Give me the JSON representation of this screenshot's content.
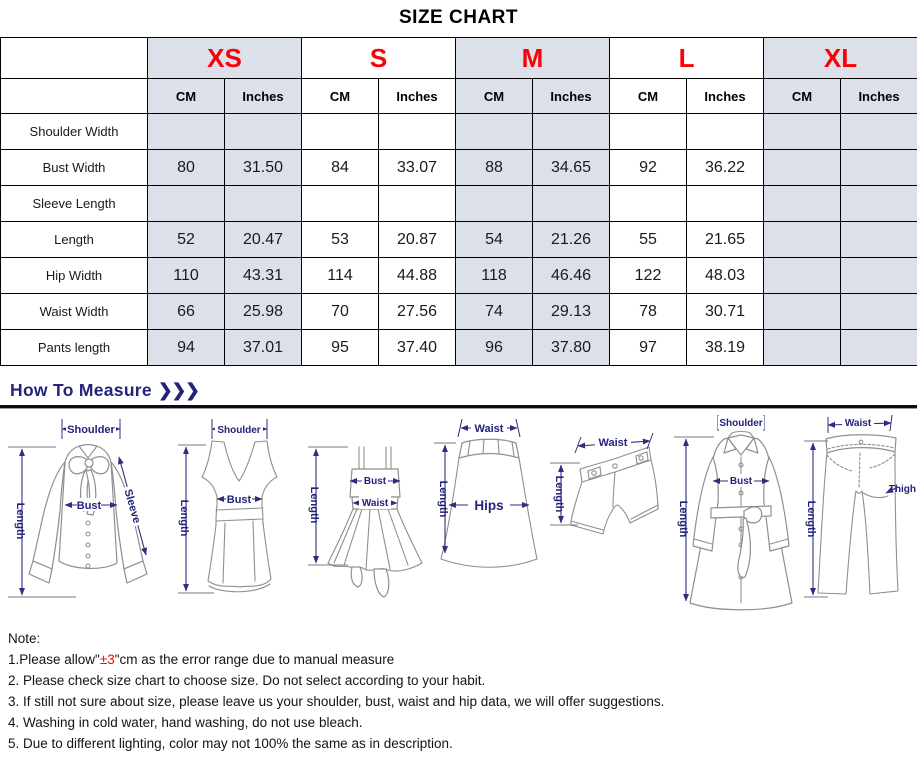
{
  "title": "SIZE CHART",
  "colors": {
    "accent_red": "#fb0007",
    "navy": "#23237b",
    "shaded_cell": "#dce0e8"
  },
  "table": {
    "sizes": [
      {
        "label": "XS",
        "shaded": true
      },
      {
        "label": "S",
        "shaded": false
      },
      {
        "label": "M",
        "shaded": true
      },
      {
        "label": "L",
        "shaded": false
      },
      {
        "label": "XL",
        "shaded": true
      }
    ],
    "unit_headers": [
      "CM",
      "Inches"
    ],
    "rows": [
      {
        "label": "Shoulder Width",
        "values": [
          "",
          "",
          "",
          "",
          "",
          "",
          "",
          "",
          "",
          ""
        ]
      },
      {
        "label": "Bust Width",
        "values": [
          "80",
          "31.50",
          "84",
          "33.07",
          "88",
          "34.65",
          "92",
          "36.22",
          "",
          ""
        ]
      },
      {
        "label": "Sleeve Length",
        "values": [
          "",
          "",
          "",
          "",
          "",
          "",
          "",
          "",
          "",
          ""
        ]
      },
      {
        "label": "Length",
        "values": [
          "52",
          "20.47",
          "53",
          "20.87",
          "54",
          "21.26",
          "55",
          "21.65",
          "",
          ""
        ]
      },
      {
        "label": "Hip Width",
        "values": [
          "110",
          "43.31",
          "114",
          "44.88",
          "118",
          "46.46",
          "122",
          "48.03",
          "",
          ""
        ]
      },
      {
        "label": "Waist Width",
        "values": [
          "66",
          "25.98",
          "70",
          "27.56",
          "74",
          "29.13",
          "78",
          "30.71",
          "",
          ""
        ]
      },
      {
        "label": "Pants length",
        "values": [
          "94",
          "37.01",
          "95",
          "37.40",
          "96",
          "37.80",
          "97",
          "38.19",
          "",
          ""
        ]
      }
    ]
  },
  "how_to_measure": {
    "heading": "How To Measure",
    "arrows": "❯❯❯"
  },
  "diagrams": [
    {
      "name": "blouse",
      "labels": {
        "shoulder": "Shoulder",
        "length": "Length",
        "bust": "Bust",
        "sleeve": "Sleeve"
      }
    },
    {
      "name": "tank-top",
      "labels": {
        "shoulder": "Shoulder",
        "length": "Length",
        "bust": "Bust"
      }
    },
    {
      "name": "dress",
      "labels": {
        "length": "Length",
        "bust": "Bust",
        "waist": "Waist"
      }
    },
    {
      "name": "skirt",
      "labels": {
        "waist": "Waist",
        "length": "Length",
        "hips": "Hips"
      }
    },
    {
      "name": "shorts",
      "labels": {
        "waist": "Waist",
        "length": "Length"
      }
    },
    {
      "name": "coat",
      "labels": {
        "shoulder": "Shoulder",
        "length": "Length",
        "bust": "Bust"
      }
    },
    {
      "name": "pants",
      "labels": {
        "waist": "Waist",
        "length": "Length",
        "thigh": "Thigh"
      }
    }
  ],
  "notes": {
    "heading": "Note:",
    "items": [
      {
        "prefix": "1.Please allow\"",
        "highlight": "±3",
        "suffix": "\"cm as the error range due to manual measure"
      },
      {
        "text": "2. Please check size chart to choose size. Do not select according to your habit."
      },
      {
        "text": "3. If still not sure about size, please leave us your shoulder, bust, waist and hip data, we will offer suggestions."
      },
      {
        "text": "4. Washing in cold water, hand washing, do not use bleach."
      },
      {
        "text": "5. Due to different lighting, color may not 100% the same as in description."
      }
    ]
  }
}
